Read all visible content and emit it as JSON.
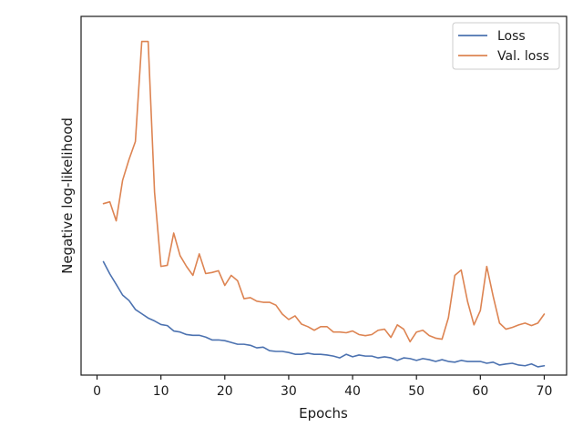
{
  "chart_data": {
    "type": "line",
    "title": "",
    "xlabel": "Epochs",
    "ylabel": "Negative log-likelihood",
    "xlim": [
      -2.5,
      73.5
    ],
    "ylim": [
      0,
      100
    ],
    "xticks": [
      0,
      10,
      20,
      30,
      40,
      50,
      60,
      70
    ],
    "grid": false,
    "legend_position": "top-right",
    "x": [
      1,
      2,
      3,
      4,
      5,
      6,
      7,
      8,
      9,
      10,
      11,
      12,
      13,
      14,
      15,
      16,
      17,
      18,
      19,
      20,
      21,
      22,
      23,
      24,
      25,
      26,
      27,
      28,
      29,
      30,
      31,
      32,
      33,
      34,
      35,
      36,
      37,
      38,
      39,
      40,
      41,
      42,
      43,
      44,
      45,
      46,
      47,
      48,
      49,
      50,
      51,
      52,
      53,
      54,
      55,
      56,
      57,
      58,
      59,
      60,
      61,
      62,
      63,
      64,
      65,
      66,
      67,
      68,
      69,
      70
    ],
    "series": [
      {
        "name": "Loss",
        "color": "#4c72b0",
        "values": [
          31.6,
          28.2,
          25.3,
          22.3,
          20.8,
          18.3,
          17.1,
          15.9,
          15.1,
          14.1,
          13.8,
          12.3,
          12.0,
          11.3,
          11.1,
          11.1,
          10.6,
          9.8,
          9.8,
          9.6,
          9.1,
          8.6,
          8.6,
          8.3,
          7.6,
          7.8,
          6.8,
          6.6,
          6.6,
          6.3,
          5.8,
          5.8,
          6.1,
          5.8,
          5.8,
          5.6,
          5.3,
          4.8,
          5.8,
          5.1,
          5.6,
          5.3,
          5.3,
          4.8,
          5.1,
          4.8,
          4.1,
          4.8,
          4.6,
          4.1,
          4.6,
          4.3,
          3.8,
          4.3,
          3.8,
          3.6,
          4.1,
          3.8,
          3.8,
          3.8,
          3.3,
          3.6,
          2.8,
          3.1,
          3.3,
          2.8,
          2.6,
          3.1,
          2.3,
          2.6
        ]
      },
      {
        "name": "Val. loss",
        "color": "#dd8452",
        "values": [
          47.8,
          48.3,
          43.0,
          54.3,
          60.1,
          65.1,
          93.0,
          93.0,
          51.0,
          30.3,
          30.6,
          39.6,
          33.3,
          30.3,
          27.8,
          33.8,
          28.3,
          28.6,
          29.1,
          25.0,
          27.8,
          26.3,
          21.3,
          21.6,
          20.6,
          20.3,
          20.3,
          19.5,
          17.0,
          15.5,
          16.5,
          14.2,
          13.5,
          12.5,
          13.5,
          13.5,
          12.0,
          12.0,
          11.8,
          12.3,
          11.3,
          11.0,
          11.3,
          12.5,
          12.8,
          10.5,
          14.0,
          12.8,
          9.3,
          12.0,
          12.5,
          11.0,
          10.3,
          10.0,
          16.0,
          27.8,
          29.3,
          20.5,
          14.0,
          18.0,
          30.3,
          22.0,
          14.5,
          12.8,
          13.3,
          14.0,
          14.5,
          13.8,
          14.5,
          17.0
        ]
      }
    ]
  }
}
